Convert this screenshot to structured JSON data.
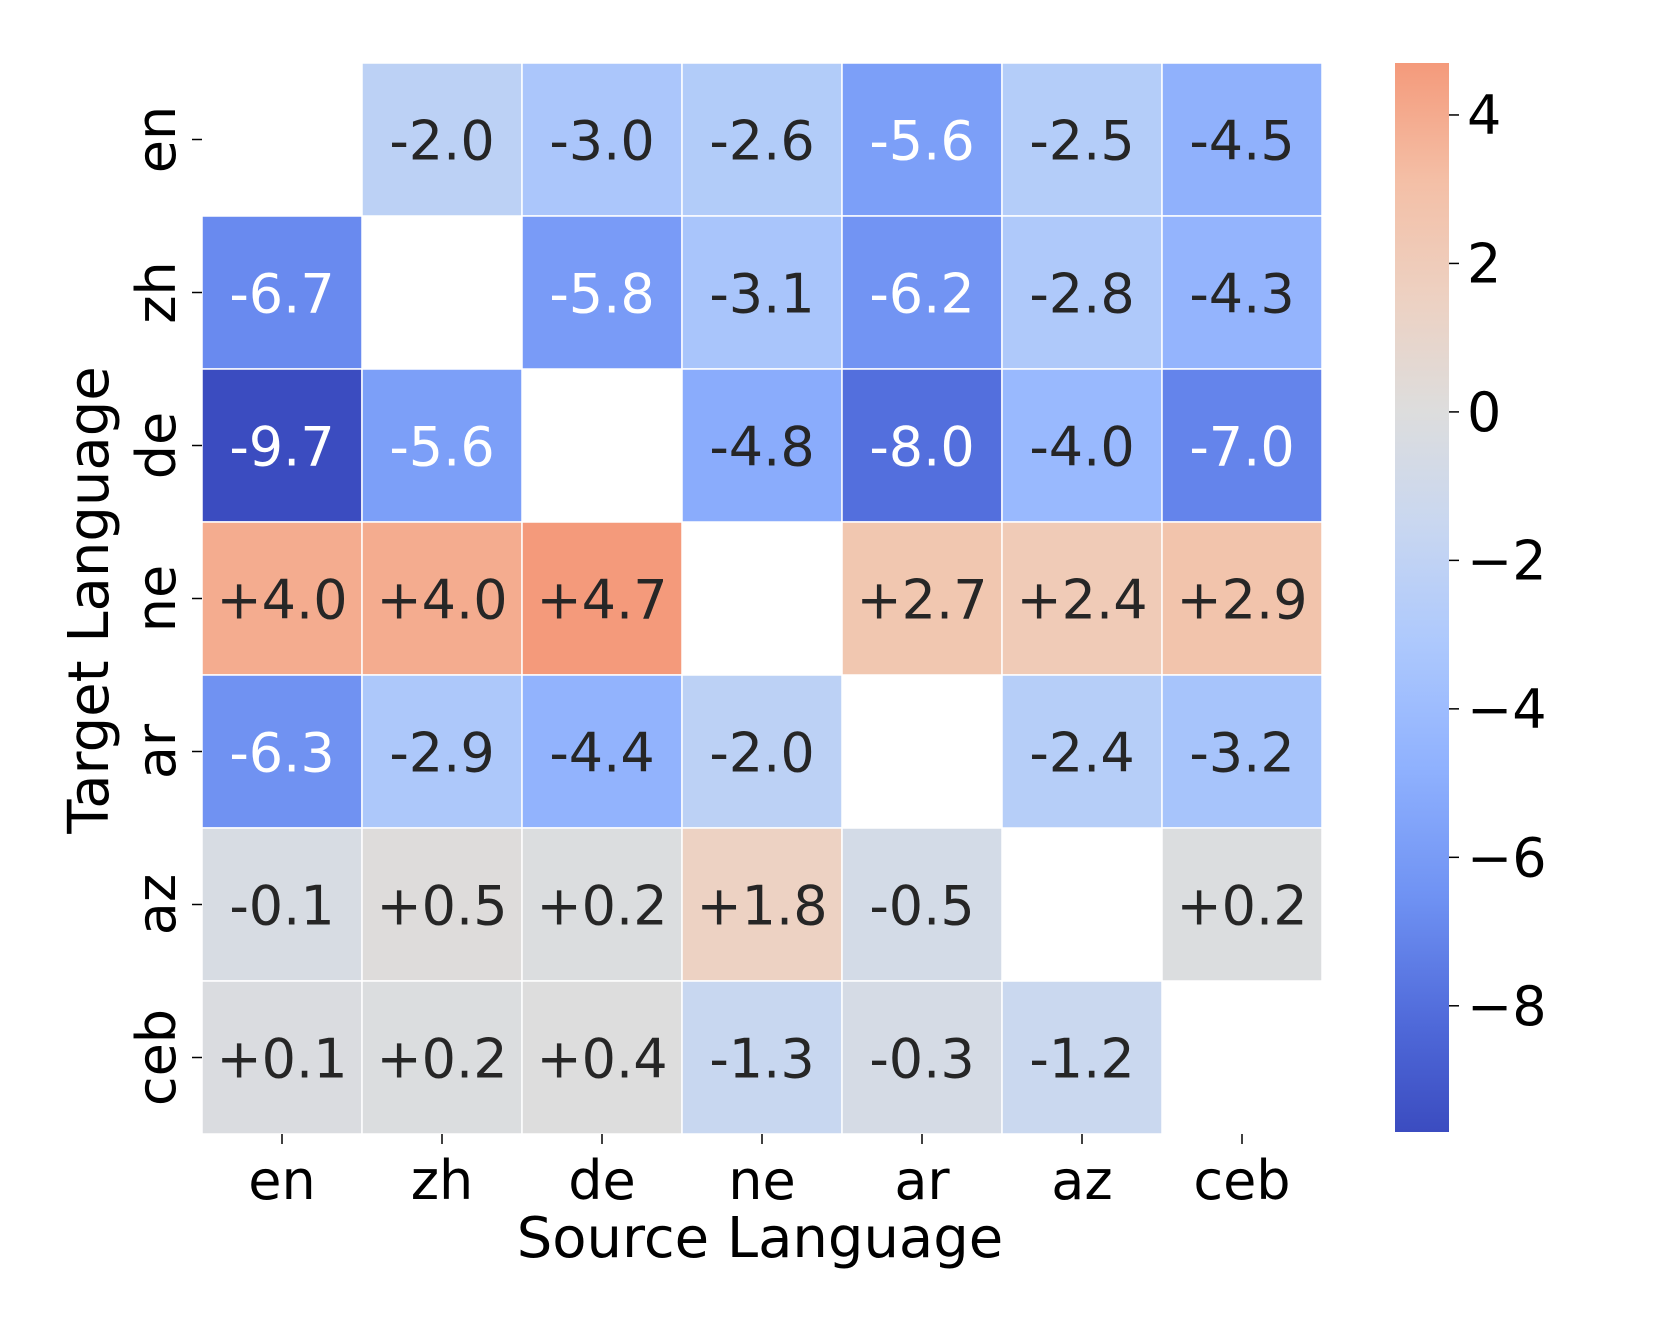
{
  "chart_data": {
    "type": "heatmap",
    "title": "",
    "xlabel": "Source Language",
    "ylabel": "Target Language",
    "x_categories": [
      "en",
      "zh",
      "de",
      "ne",
      "ar",
      "az",
      "ceb"
    ],
    "y_categories": [
      "en",
      "zh",
      "de",
      "ne",
      "ar",
      "az",
      "ceb"
    ],
    "values": [
      [
        null,
        -2.0,
        -3.0,
        -2.6,
        -5.6,
        -2.5,
        -4.5
      ],
      [
        -6.7,
        null,
        -5.8,
        -3.1,
        -6.2,
        -2.8,
        -4.3
      ],
      [
        -9.7,
        -5.6,
        null,
        -4.8,
        -8.0,
        -4.0,
        -7.0
      ],
      [
        4.0,
        4.0,
        4.7,
        null,
        2.7,
        2.4,
        2.9
      ],
      [
        -6.3,
        -2.9,
        -4.4,
        -2.0,
        null,
        -2.4,
        -3.2
      ],
      [
        -0.1,
        0.5,
        0.2,
        1.8,
        -0.5,
        null,
        0.2
      ],
      [
        0.1,
        0.2,
        0.4,
        -1.3,
        -0.3,
        -1.2,
        null
      ]
    ],
    "cell_labels": [
      [
        "",
        "-2.0",
        "-3.0",
        "-2.6",
        "-5.6",
        "-2.5",
        "-4.5"
      ],
      [
        "-6.7",
        "",
        "-5.8",
        "-3.1",
        "-6.2",
        "-2.8",
        "-4.3"
      ],
      [
        "-9.7",
        "-5.6",
        "",
        "-4.8",
        "-8.0",
        "-4.0",
        "-7.0"
      ],
      [
        "+4.0",
        "+4.0",
        "+4.7",
        "",
        "+2.7",
        "+2.4",
        "+2.9"
      ],
      [
        "-6.3",
        "-2.9",
        "-4.4",
        "-2.0",
        "",
        "-2.4",
        "-3.2"
      ],
      [
        "-0.1",
        "+0.5",
        "+0.2",
        "+1.8",
        "-0.5",
        "",
        "+0.2"
      ],
      [
        "+0.1",
        "+0.2",
        "+0.4",
        "-1.3",
        "-0.3",
        "-1.2",
        ""
      ]
    ],
    "colormap": "coolwarm",
    "center": 0,
    "vmin": -9.7,
    "vmax": 4.7,
    "colorbar": {
      "ticks": [
        4,
        2,
        0,
        -2,
        -4,
        -6,
        -8
      ],
      "tick_labels": [
        "4",
        "2",
        "0",
        "−2",
        "−4",
        "−6",
        "−8"
      ],
      "placement": "right"
    },
    "colors": {
      "cold_end": "#3b4cc0",
      "neutral": "#dddddd",
      "warm_end": "#f49a7b"
    }
  }
}
